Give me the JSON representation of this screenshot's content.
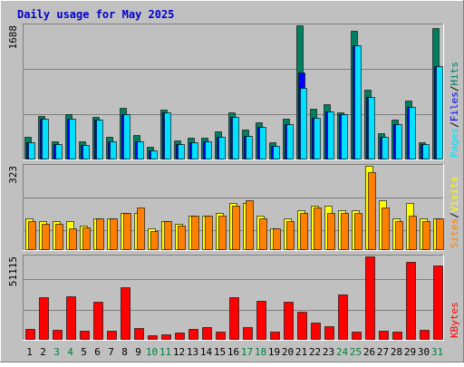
{
  "chart_data": {
    "title": "Daily usage for May 2025",
    "type": "bar",
    "categories": [
      "1",
      "2",
      "3",
      "4",
      "5",
      "6",
      "7",
      "8",
      "9",
      "10",
      "11",
      "12",
      "13",
      "14",
      "15",
      "16",
      "17",
      "18",
      "19",
      "20",
      "21",
      "22",
      "23",
      "24",
      "25",
      "26",
      "27",
      "28",
      "29",
      "30",
      "31"
    ],
    "weekend_days": [
      "3",
      "4",
      "10",
      "11",
      "17",
      "18",
      "24",
      "25",
      "31"
    ],
    "colors": {
      "background": "#c0c0c0",
      "plot_background": "#c0c0c0",
      "grid": "#808080",
      "title": "#0000cc",
      "hits": "#008060",
      "files": "#0000ff",
      "pages": "#00e0ff",
      "visits": "#ffff00",
      "sites": "#ff8000",
      "kbytes": "#ff0000",
      "weekend_label": "#008040",
      "weekday_label": "#000000"
    },
    "panels": [
      {
        "id": "hits-files-pages",
        "ymax_label": "1688",
        "ymax": 1688,
        "legend": [
          {
            "label": "Pages",
            "color": "#00e0ff"
          },
          {
            "label": "/",
            "color": "#000000"
          },
          {
            "label": "Files",
            "color": "#0000ff"
          },
          {
            "label": "/",
            "color": "#000000"
          },
          {
            "label": "Hits",
            "color": "#008060"
          }
        ],
        "series": [
          {
            "name": "Hits",
            "values": [
              280,
              540,
              220,
              560,
              220,
              530,
              270,
              640,
              300,
              150,
              620,
              230,
              260,
              260,
              350,
              590,
              370,
              460,
              210,
              500,
              1688,
              630,
              690,
              590,
              1620,
              870,
              320,
              490,
              730,
              210,
              1650
            ]
          },
          {
            "name": "Files",
            "values": [
              210,
              500,
              180,
              510,
              170,
              490,
              220,
              560,
              220,
              100,
              580,
              180,
              210,
              220,
              280,
              530,
              290,
              400,
              160,
              440,
              1090,
              520,
              600,
              560,
              1430,
              780,
              280,
              440,
              660,
              180,
              1170
            ]
          },
          {
            "name": "Pages",
            "values": [
              210,
              500,
              180,
              510,
              170,
              490,
              220,
              560,
              220,
              100,
              580,
              180,
              210,
              220,
              280,
              530,
              290,
              400,
              160,
              440,
              900,
              520,
              600,
              560,
              1430,
              780,
              280,
              440,
              660,
              180,
              1170
            ]
          }
        ]
      },
      {
        "id": "visits-sites",
        "ymax_label": "323",
        "ymax": 323,
        "legend": [
          {
            "label": "Sites",
            "color": "#ff8000"
          },
          {
            "label": "/",
            "color": "#000000"
          },
          {
            "label": "Visits",
            "color": "#ffff00"
          }
        ],
        "series": [
          {
            "name": "Visits",
            "values": [
              120,
              110,
              110,
              110,
              90,
              120,
              120,
              140,
              140,
              80,
              110,
              100,
              130,
              130,
              140,
              180,
              180,
              130,
              80,
              120,
              150,
              170,
              170,
              150,
              150,
              323,
              190,
              120,
              180,
              120,
              120
            ]
          },
          {
            "name": "Sites",
            "values": [
              110,
              100,
              100,
              80,
              85,
              120,
              120,
              140,
              160,
              70,
              110,
              90,
              130,
              130,
              130,
              170,
              190,
              120,
              80,
              110,
              140,
              160,
              140,
              140,
              140,
              300,
              160,
              110,
              130,
              110,
              120
            ]
          }
        ]
      },
      {
        "id": "kbytes",
        "ymax_label": "51115",
        "ymax": 51115,
        "legend": [
          {
            "label": "KBytes",
            "color": "#ff0000"
          }
        ],
        "series": [
          {
            "name": "KBytes",
            "values": [
              6000,
              26000,
              5500,
              26500,
              5000,
              23000,
              5000,
              32000,
              6500,
              2000,
              3000,
              4000,
              6000,
              7500,
              4500,
              26000,
              7500,
              23500,
              4500,
              23000,
              17000,
              10000,
              8000,
              27500,
              4500,
              51115,
              5000,
              4500,
              48000,
              5500,
              45500
            ]
          }
        ]
      }
    ]
  }
}
